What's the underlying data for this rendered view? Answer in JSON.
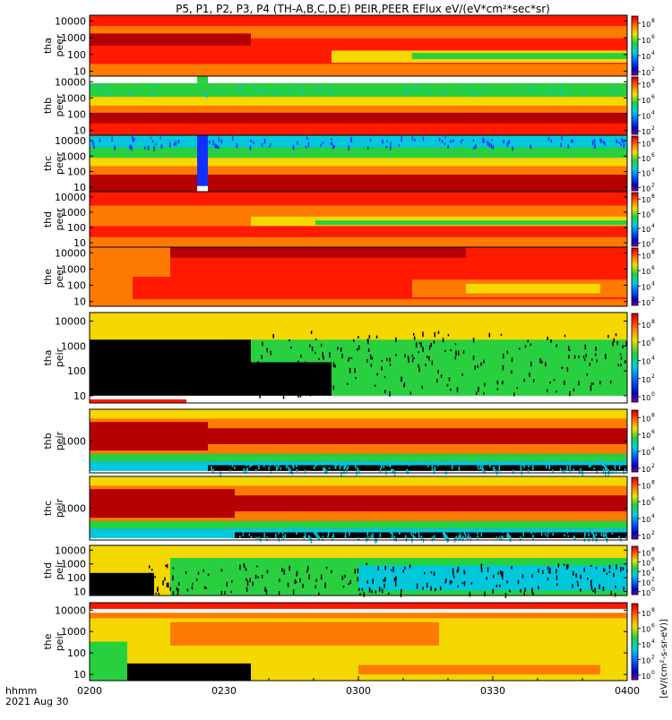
{
  "title": "P5, P1, P2, P3, P4 (TH-A,B,C,D,E) PEIR,PEER EFlux eV/(eV*cm²*sec*sr)",
  "chart_data": {
    "type": "heatmap",
    "x_tick_labels": [
      "0200",
      "0230",
      "0300",
      "0330",
      "0400"
    ],
    "x_corner_label": "hhmm",
    "date_label": "2021 Aug 30",
    "colorbar_unit": "[eV/(cm²-s-sr-eV)]",
    "colorbar_exponents": [
      "8",
      "6",
      "4",
      "2",
      "0"
    ],
    "colors": {
      "dark_red": "#b40000",
      "red": "#ff1a00",
      "orange": "#ff7a00",
      "yellow": "#f5d800",
      "green": "#28d040",
      "cyan": "#00c8dc",
      "blue": "#1030ff",
      "black": "#000000",
      "white": "#ffffff"
    },
    "panels": [
      {
        "id": "tha_peer",
        "ylabel_1": "tha",
        "ylabel_2": "peer",
        "y_ticks": [
          "10000",
          "1000",
          "100",
          "10"
        ],
        "bar_exps": [
          "8",
          "6",
          "4",
          "2"
        ]
      },
      {
        "id": "thb_peer",
        "ylabel_1": "thb",
        "ylabel_2": "peer",
        "y_ticks": [
          "10000",
          "1000",
          "100",
          "10"
        ],
        "bar_exps": [
          "8",
          "6",
          "4",
          "2"
        ]
      },
      {
        "id": "thc_peer",
        "ylabel_1": "thc",
        "ylabel_2": "peer",
        "y_ticks": [
          "10000",
          "1000",
          "100",
          "10"
        ],
        "bar_exps": [
          "8",
          "6",
          "4",
          "2"
        ]
      },
      {
        "id": "thd_peer",
        "ylabel_1": "thd",
        "ylabel_2": "peer",
        "y_ticks": [
          "10000",
          "1000",
          "100",
          "10"
        ],
        "bar_exps": [
          "8",
          "6",
          "4",
          "2"
        ]
      },
      {
        "id": "the_peer",
        "ylabel_1": "the",
        "ylabel_2": "peer",
        "y_ticks": [
          "10000",
          "1000",
          "100",
          "10"
        ],
        "bar_exps": [
          "8",
          "6",
          "4",
          "2"
        ]
      },
      {
        "id": "tha_peir",
        "ylabel_1": "tha",
        "ylabel_2": "peir",
        "y_ticks": [
          "10000",
          "1000",
          "100",
          "10"
        ],
        "bar_exps": [
          "8",
          "6",
          "4",
          "2",
          "0"
        ]
      },
      {
        "id": "thb_peir",
        "ylabel_1": "thb",
        "ylabel_2": "peir",
        "y_ticks": [
          "1000"
        ],
        "bar_exps": [
          "8",
          "6",
          "4",
          "2"
        ]
      },
      {
        "id": "thc_peir",
        "ylabel_1": "thc",
        "ylabel_2": "peir",
        "y_ticks": [
          "1000"
        ],
        "bar_exps": [
          "8",
          "6",
          "4",
          "2"
        ]
      },
      {
        "id": "thd_peir",
        "ylabel_1": "thd",
        "ylabel_2": "peir",
        "y_ticks": [
          "10000",
          "1000",
          "100",
          "10"
        ],
        "bar_exps": [
          "8",
          "6",
          "4",
          "2",
          "0"
        ]
      },
      {
        "id": "the_peir",
        "ylabel_1": "the",
        "ylabel_2": "peir",
        "y_ticks": [
          "10000",
          "1000",
          "100",
          "10"
        ],
        "bar_exps": [
          "8",
          "6",
          "4",
          "2",
          "0"
        ]
      }
    ]
  }
}
